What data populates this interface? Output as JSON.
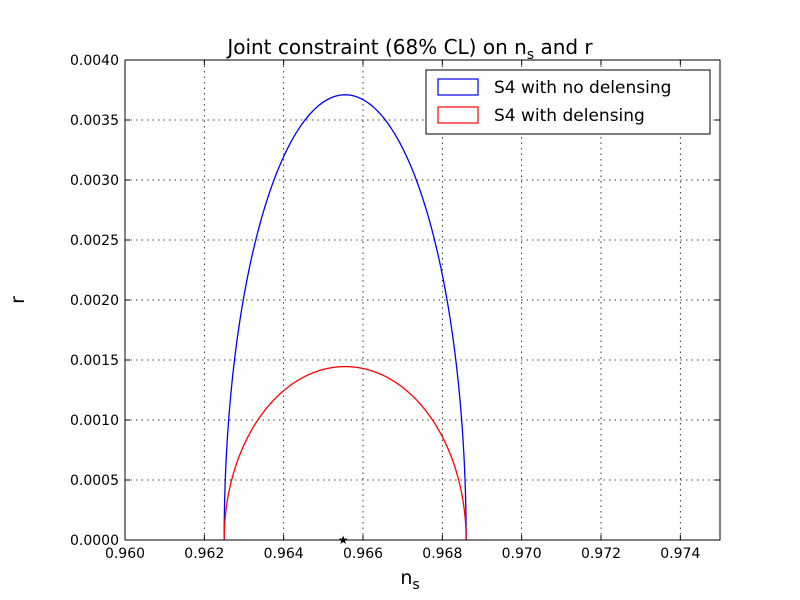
{
  "chart_data": {
    "type": "line",
    "title_main": "Joint constraint (68% CL) on n",
    "title_sub": "s",
    "title_tail": " and r",
    "xlabel_main": "n",
    "xlabel_sub": "s",
    "ylabel": "r",
    "xlim": [
      0.96,
      0.975
    ],
    "ylim": [
      0.0,
      0.004
    ],
    "xticks": [
      "0.960",
      "0.962",
      "0.964",
      "0.966",
      "0.968",
      "0.970",
      "0.972",
      "0.974"
    ],
    "yticks": [
      "0.0000",
      "0.0005",
      "0.0010",
      "0.0015",
      "0.0020",
      "0.0025",
      "0.0030",
      "0.0035",
      "0.0040"
    ],
    "grid": true,
    "legend_position": "top-right",
    "fiducial_point": {
      "x": 0.9655,
      "y": 0.0
    },
    "series": [
      {
        "name": "S4 with no delensing",
        "color": "#0000ff",
        "shape": "half-ellipse",
        "center_x": 0.9655,
        "x_min": 0.9625,
        "x_max": 0.9686,
        "y_peak": 0.00371
      },
      {
        "name": "S4 with delensing",
        "color": "#ff0000",
        "shape": "half-ellipse",
        "center_x": 0.9655,
        "x_min": 0.9625,
        "x_max": 0.9686,
        "y_peak": 0.001445
      }
    ]
  }
}
